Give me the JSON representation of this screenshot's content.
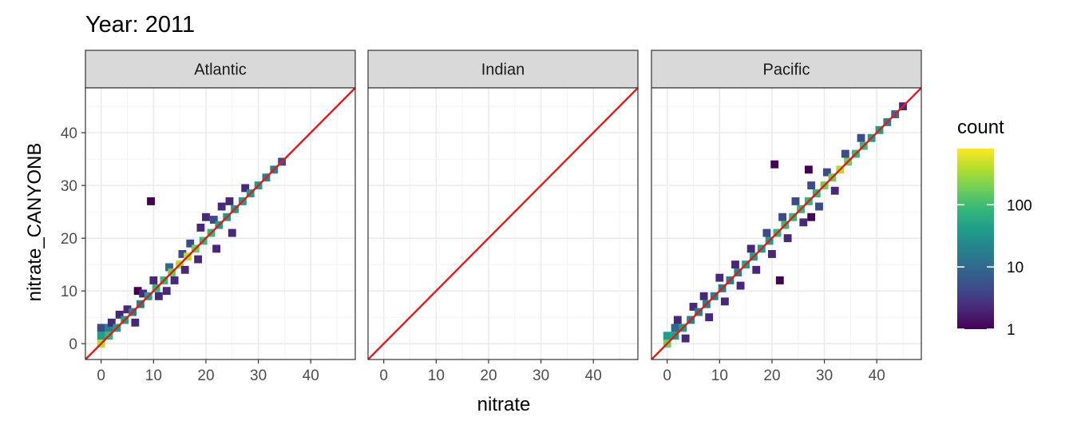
{
  "chart_data": {
    "type": "heatmap",
    "title": "Year: 2011",
    "xlabel": "nitrate",
    "ylabel": "nitrate_CANYONB",
    "xlim": [
      -3,
      48.5
    ],
    "ylim": [
      -3,
      48.5
    ],
    "x_ticks": [
      0,
      10,
      20,
      30,
      40
    ],
    "y_ticks": [
      0,
      10,
      20,
      30,
      40
    ],
    "grid": true,
    "identity_line_color": "#e31a1c",
    "facets": [
      "Atlantic",
      "Indian",
      "Pacific"
    ],
    "legend": {
      "title": "count",
      "position": "right",
      "scale": "log10",
      "range": [
        1,
        800
      ],
      "breaks": [
        1,
        10,
        100
      ],
      "labels": [
        "1",
        "10",
        "100"
      ],
      "palette": [
        "#440154",
        "#482878",
        "#3e4a89",
        "#31688e",
        "#26828e",
        "#1f9e89",
        "#35b779",
        "#6ece58",
        "#b5de2b",
        "#fde725"
      ]
    },
    "bins": {
      "Atlantic": [
        {
          "x": 0,
          "y": 0,
          "count": 300
        },
        {
          "x": 0,
          "y": 1.5,
          "count": 40
        },
        {
          "x": 0,
          "y": 3,
          "count": 5
        },
        {
          "x": 1.5,
          "y": 1.5,
          "count": 60
        },
        {
          "x": 1.5,
          "y": 3,
          "count": 20
        },
        {
          "x": 2,
          "y": 4,
          "count": 3
        },
        {
          "x": 3,
          "y": 3,
          "count": 40
        },
        {
          "x": 3.5,
          "y": 5.5,
          "count": 2
        },
        {
          "x": 4.5,
          "y": 4.5,
          "count": 30
        },
        {
          "x": 5,
          "y": 6.5,
          "count": 2
        },
        {
          "x": 6,
          "y": 6,
          "count": 25
        },
        {
          "x": 6.5,
          "y": 4,
          "count": 2
        },
        {
          "x": 7,
          "y": 10,
          "count": 1
        },
        {
          "x": 7.5,
          "y": 7.5,
          "count": 20
        },
        {
          "x": 8,
          "y": 9.5,
          "count": 3
        },
        {
          "x": 9,
          "y": 9,
          "count": 30
        },
        {
          "x": 10,
          "y": 12,
          "count": 3
        },
        {
          "x": 10.5,
          "y": 10.5,
          "count": 60
        },
        {
          "x": 11,
          "y": 9,
          "count": 2
        },
        {
          "x": 12,
          "y": 12,
          "count": 120
        },
        {
          "x": 12.5,
          "y": 10,
          "count": 2
        },
        {
          "x": 13,
          "y": 14.5,
          "count": 8
        },
        {
          "x": 13.5,
          "y": 13.5,
          "count": 250
        },
        {
          "x": 14,
          "y": 12,
          "count": 2
        },
        {
          "x": 15,
          "y": 15,
          "count": 400
        },
        {
          "x": 15.5,
          "y": 17,
          "count": 6
        },
        {
          "x": 16,
          "y": 14,
          "count": 3
        },
        {
          "x": 16.5,
          "y": 16.5,
          "count": 300
        },
        {
          "x": 17,
          "y": 19,
          "count": 5
        },
        {
          "x": 18,
          "y": 18,
          "count": 150
        },
        {
          "x": 18.5,
          "y": 16,
          "count": 3
        },
        {
          "x": 19,
          "y": 22,
          "count": 2
        },
        {
          "x": 19.5,
          "y": 19.5,
          "count": 80
        },
        {
          "x": 20,
          "y": 24,
          "count": 2
        },
        {
          "x": 21,
          "y": 21,
          "count": 60
        },
        {
          "x": 21.5,
          "y": 23.5,
          "count": 5
        },
        {
          "x": 22,
          "y": 18,
          "count": 3
        },
        {
          "x": 22.5,
          "y": 22.5,
          "count": 50
        },
        {
          "x": 23,
          "y": 26,
          "count": 2
        },
        {
          "x": 24,
          "y": 24,
          "count": 45
        },
        {
          "x": 24.5,
          "y": 27,
          "count": 3
        },
        {
          "x": 25,
          "y": 21,
          "count": 2
        },
        {
          "x": 25.5,
          "y": 25.5,
          "count": 40
        },
        {
          "x": 27,
          "y": 27,
          "count": 35
        },
        {
          "x": 27.5,
          "y": 29.5,
          "count": 3
        },
        {
          "x": 28.5,
          "y": 28.5,
          "count": 30
        },
        {
          "x": 30,
          "y": 30,
          "count": 30
        },
        {
          "x": 31.5,
          "y": 31.5,
          "count": 25
        },
        {
          "x": 33,
          "y": 33,
          "count": 15
        },
        {
          "x": 34.5,
          "y": 34.5,
          "count": 5
        },
        {
          "x": 9.5,
          "y": 27,
          "count": 1
        }
      ],
      "Indian": [],
      "Pacific": [
        {
          "x": 0,
          "y": 0,
          "count": 200
        },
        {
          "x": 0,
          "y": 1.5,
          "count": 30
        },
        {
          "x": 1.5,
          "y": 1.5,
          "count": 40
        },
        {
          "x": 1.5,
          "y": 3,
          "count": 10
        },
        {
          "x": 2,
          "y": 4.5,
          "count": 3
        },
        {
          "x": 3,
          "y": 3,
          "count": 30
        },
        {
          "x": 3.5,
          "y": 1,
          "count": 2
        },
        {
          "x": 4.5,
          "y": 4.5,
          "count": 25
        },
        {
          "x": 5,
          "y": 7,
          "count": 2
        },
        {
          "x": 6,
          "y": 6,
          "count": 25
        },
        {
          "x": 7,
          "y": 9,
          "count": 3
        },
        {
          "x": 7.5,
          "y": 7.5,
          "count": 20
        },
        {
          "x": 8,
          "y": 5,
          "count": 2
        },
        {
          "x": 9,
          "y": 9,
          "count": 20
        },
        {
          "x": 10,
          "y": 12.5,
          "count": 3
        },
        {
          "x": 10.5,
          "y": 10.5,
          "count": 20
        },
        {
          "x": 11,
          "y": 8,
          "count": 2
        },
        {
          "x": 12,
          "y": 12,
          "count": 25
        },
        {
          "x": 13,
          "y": 15,
          "count": 3
        },
        {
          "x": 13.5,
          "y": 13.5,
          "count": 25
        },
        {
          "x": 14,
          "y": 11,
          "count": 2
        },
        {
          "x": 15,
          "y": 15,
          "count": 30
        },
        {
          "x": 16,
          "y": 18,
          "count": 3
        },
        {
          "x": 16.5,
          "y": 16.5,
          "count": 35
        },
        {
          "x": 17,
          "y": 14,
          "count": 2
        },
        {
          "x": 18,
          "y": 18,
          "count": 40
        },
        {
          "x": 19,
          "y": 21,
          "count": 4
        },
        {
          "x": 19.5,
          "y": 19.5,
          "count": 50
        },
        {
          "x": 20,
          "y": 17,
          "count": 3
        },
        {
          "x": 21,
          "y": 21,
          "count": 60
        },
        {
          "x": 22,
          "y": 24,
          "count": 5
        },
        {
          "x": 22.5,
          "y": 22.5,
          "count": 70
        },
        {
          "x": 23,
          "y": 20,
          "count": 3
        },
        {
          "x": 24,
          "y": 24,
          "count": 80
        },
        {
          "x": 24.5,
          "y": 27,
          "count": 5
        },
        {
          "x": 25.5,
          "y": 25.5,
          "count": 90
        },
        {
          "x": 26,
          "y": 23,
          "count": 3
        },
        {
          "x": 27,
          "y": 27,
          "count": 100
        },
        {
          "x": 27.5,
          "y": 30,
          "count": 6
        },
        {
          "x": 28.5,
          "y": 28.5,
          "count": 120
        },
        {
          "x": 29,
          "y": 26,
          "count": 4
        },
        {
          "x": 30,
          "y": 30,
          "count": 150
        },
        {
          "x": 30.5,
          "y": 32.5,
          "count": 6
        },
        {
          "x": 31.5,
          "y": 31.5,
          "count": 250
        },
        {
          "x": 32,
          "y": 29,
          "count": 3
        },
        {
          "x": 33,
          "y": 33,
          "count": 300
        },
        {
          "x": 34,
          "y": 36,
          "count": 5
        },
        {
          "x": 34.5,
          "y": 34.5,
          "count": 200
        },
        {
          "x": 36,
          "y": 36,
          "count": 120
        },
        {
          "x": 37,
          "y": 39,
          "count": 4
        },
        {
          "x": 37.5,
          "y": 37.5,
          "count": 80
        },
        {
          "x": 39,
          "y": 39,
          "count": 50
        },
        {
          "x": 40.5,
          "y": 40.5,
          "count": 30
        },
        {
          "x": 42,
          "y": 42,
          "count": 15
        },
        {
          "x": 43.5,
          "y": 43.5,
          "count": 8
        },
        {
          "x": 45,
          "y": 45,
          "count": 3
        },
        {
          "x": 20.5,
          "y": 34,
          "count": 1
        },
        {
          "x": 27,
          "y": 33,
          "count": 1
        },
        {
          "x": 27.5,
          "y": 24,
          "count": 1
        },
        {
          "x": 21.5,
          "y": 12,
          "count": 1
        }
      ]
    }
  }
}
